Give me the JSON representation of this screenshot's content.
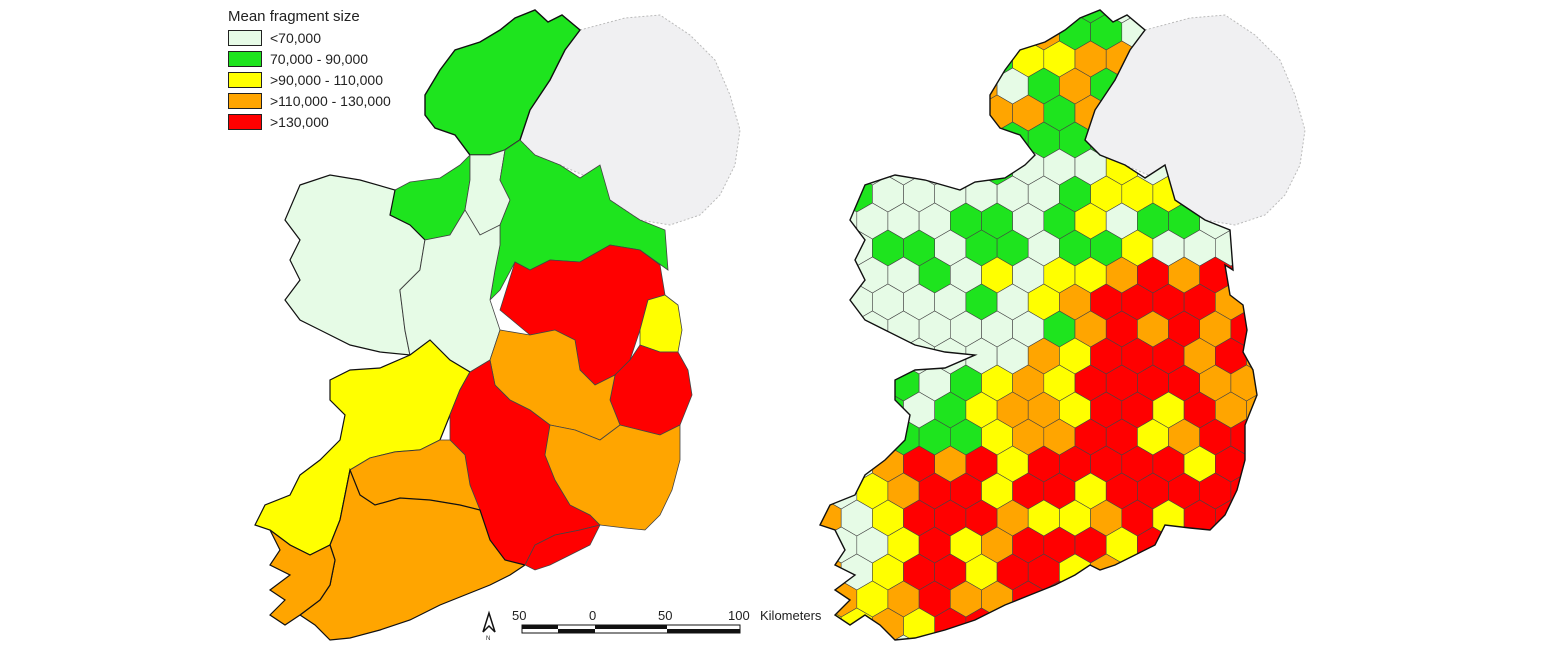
{
  "legend": {
    "title": "Mean fragment size",
    "items": [
      {
        "label": "<70,000",
        "color": "#e6fbe6"
      },
      {
        "label": "70,000 - 90,000",
        "color": "#1ee41e"
      },
      {
        "label": ">90,000 - 110,000",
        "color": "#ffff00"
      },
      {
        "label": ">110,000 - 130,000",
        "color": "#ffa500"
      },
      {
        "label": ">130,000",
        "color": "#ff0000"
      }
    ]
  },
  "scale_bar": {
    "labels": [
      "50",
      "0",
      "50",
      "100"
    ],
    "unit": "Kilometers"
  },
  "north_arrow": {
    "label": "N"
  },
  "colors": {
    "northern_ireland": "#f0f0f2",
    "outline": "#111111",
    "border": "#444444"
  }
}
